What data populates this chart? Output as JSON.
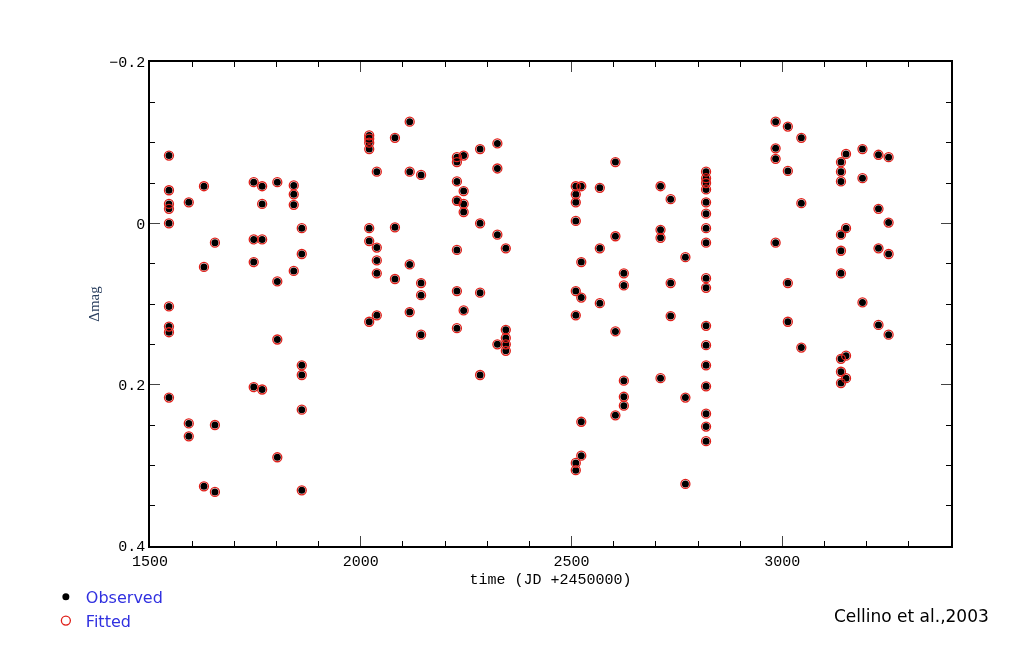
{
  "chart_data": {
    "type": "scatter",
    "xlabel": "time (JD +2450000)",
    "ylabel": "Δmag",
    "xlim": [
      1500,
      3400
    ],
    "xticks": [
      1500,
      2000,
      2500,
      3000
    ],
    "ylim": [
      0.4,
      -0.2
    ],
    "yticks": [
      -0.2,
      0,
      0.2,
      0.4
    ],
    "x": [
      1545,
      1545,
      1545,
      1545,
      1545,
      1545,
      1545,
      1545,
      1545,
      1592,
      1592,
      1592,
      1628,
      1628,
      1628,
      1654,
      1654,
      1654,
      1746,
      1746,
      1746,
      1746,
      1766,
      1766,
      1766,
      1766,
      1802,
      1802,
      1802,
      1802,
      1841,
      1841,
      1841,
      1841,
      1860,
      1860,
      1860,
      1860,
      1860,
      1860,
      2020,
      2020,
      2020,
      2020,
      2020,
      2020,
      2020,
      2038,
      2038,
      2038,
      2038,
      2038,
      2081,
      2081,
      2081,
      2116,
      2116,
      2116,
      2116,
      2143,
      2143,
      2143,
      2143,
      2228,
      2228,
      2228,
      2228,
      2228,
      2228,
      2228,
      2244,
      2244,
      2244,
      2244,
      2244,
      2283,
      2283,
      2283,
      2283,
      2324,
      2324,
      2324,
      2324,
      2344,
      2344,
      2344,
      2344,
      2344,
      2510,
      2510,
      2510,
      2510,
      2510,
      2510,
      2510,
      2510,
      2523,
      2523,
      2523,
      2523,
      2523,
      2567,
      2567,
      2567,
      2604,
      2604,
      2604,
      2604,
      2624,
      2624,
      2624,
      2624,
      2624,
      2711,
      2711,
      2711,
      2711,
      2735,
      2735,
      2735,
      2770,
      2770,
      2770,
      2819,
      2819,
      2819,
      2819,
      2819,
      2819,
      2819,
      2819,
      2819,
      2819,
      2819,
      2819,
      2819,
      2819,
      2819,
      2819,
      2819,
      2984,
      2984,
      2984,
      2984,
      3013,
      3013,
      3013,
      3013,
      3045,
      3045,
      3045,
      3139,
      3139,
      3139,
      3139,
      3139,
      3139,
      3139,
      3139,
      3139,
      3151,
      3151,
      3151,
      3151,
      3190,
      3190,
      3190,
      3228,
      3228,
      3228,
      3228,
      3252,
      3252,
      3252,
      3252
    ],
    "series": [
      {
        "name": "Observed",
        "color": "#000000",
        "values": [
          -0.084,
          -0.041,
          -0.024,
          -0.018,
          0.0,
          0.103,
          0.128,
          0.135,
          0.216,
          -0.026,
          0.248,
          0.264,
          -0.046,
          0.054,
          0.326,
          0.024,
          0.25,
          0.333,
          -0.051,
          0.02,
          0.048,
          0.203,
          -0.046,
          -0.024,
          0.02,
          0.206,
          -0.051,
          0.072,
          0.144,
          0.29,
          -0.047,
          -0.036,
          -0.023,
          0.059,
          0.006,
          0.038,
          0.176,
          0.188,
          0.231,
          0.331,
          -0.109,
          -0.105,
          -0.1,
          -0.092,
          0.006,
          0.022,
          0.122,
          -0.064,
          0.03,
          0.046,
          0.062,
          0.114,
          -0.106,
          0.005,
          0.069,
          -0.126,
          -0.064,
          0.051,
          0.11,
          -0.06,
          0.074,
          0.089,
          0.138,
          -0.082,
          -0.076,
          -0.052,
          -0.028,
          0.033,
          0.084,
          0.13,
          -0.084,
          -0.04,
          -0.024,
          -0.014,
          0.108,
          -0.092,
          0.0,
          0.086,
          0.188,
          -0.099,
          -0.068,
          0.014,
          0.15,
          0.031,
          0.132,
          0.142,
          0.15,
          0.158,
          -0.046,
          -0.036,
          -0.026,
          -0.003,
          0.084,
          0.114,
          0.297,
          0.306,
          -0.046,
          0.048,
          0.092,
          0.246,
          0.288,
          -0.044,
          0.031,
          0.099,
          -0.076,
          0.016,
          0.134,
          0.238,
          0.062,
          0.077,
          0.195,
          0.215,
          0.226,
          -0.046,
          0.008,
          0.018,
          0.192,
          -0.03,
          0.074,
          0.115,
          0.042,
          0.216,
          0.323,
          -0.064,
          -0.056,
          -0.05,
          -0.042,
          -0.026,
          -0.012,
          0.006,
          0.024,
          0.068,
          0.08,
          0.127,
          0.151,
          0.176,
          0.202,
          0.236,
          0.252,
          0.27,
          -0.126,
          -0.093,
          -0.08,
          0.024,
          -0.12,
          -0.065,
          0.074,
          0.122,
          -0.106,
          -0.025,
          0.154,
          -0.076,
          -0.064,
          -0.052,
          0.014,
          0.034,
          0.062,
          0.168,
          0.184,
          0.198,
          -0.086,
          0.006,
          0.164,
          0.192,
          -0.092,
          -0.056,
          0.098,
          -0.085,
          -0.018,
          0.031,
          0.126,
          -0.082,
          -0.001,
          0.038,
          0.138
        ]
      },
      {
        "name": "Fitted",
        "color": "#e0201a",
        "values": [
          -0.084,
          -0.041,
          -0.024,
          -0.018,
          0.0,
          0.103,
          0.128,
          0.135,
          0.216,
          -0.026,
          0.248,
          0.264,
          -0.046,
          0.054,
          0.326,
          0.024,
          0.25,
          0.333,
          -0.051,
          0.02,
          0.048,
          0.203,
          -0.046,
          -0.024,
          0.02,
          0.206,
          -0.051,
          0.072,
          0.144,
          0.29,
          -0.047,
          -0.036,
          -0.023,
          0.059,
          0.006,
          0.038,
          0.176,
          0.188,
          0.231,
          0.331,
          -0.109,
          -0.105,
          -0.1,
          -0.092,
          0.006,
          0.022,
          0.122,
          -0.064,
          0.03,
          0.046,
          0.062,
          0.114,
          -0.106,
          0.005,
          0.069,
          -0.126,
          -0.064,
          0.051,
          0.11,
          -0.06,
          0.074,
          0.089,
          0.138,
          -0.082,
          -0.076,
          -0.052,
          -0.028,
          0.033,
          0.084,
          0.13,
          -0.084,
          -0.04,
          -0.024,
          -0.014,
          0.108,
          -0.092,
          0.0,
          0.086,
          0.188,
          -0.099,
          -0.068,
          0.014,
          0.15,
          0.031,
          0.132,
          0.142,
          0.15,
          0.158,
          -0.046,
          -0.036,
          -0.026,
          -0.003,
          0.084,
          0.114,
          0.297,
          0.306,
          -0.046,
          0.048,
          0.092,
          0.246,
          0.288,
          -0.044,
          0.031,
          0.099,
          -0.076,
          0.016,
          0.134,
          0.238,
          0.062,
          0.077,
          0.195,
          0.215,
          0.226,
          -0.046,
          0.008,
          0.018,
          0.192,
          -0.03,
          0.074,
          0.115,
          0.042,
          0.216,
          0.323,
          -0.064,
          -0.056,
          -0.05,
          -0.042,
          -0.026,
          -0.012,
          0.006,
          0.024,
          0.068,
          0.08,
          0.127,
          0.151,
          0.176,
          0.202,
          0.236,
          0.252,
          0.27,
          -0.126,
          -0.093,
          -0.08,
          0.024,
          -0.12,
          -0.065,
          0.074,
          0.122,
          -0.106,
          -0.025,
          0.154,
          -0.076,
          -0.064,
          -0.052,
          0.014,
          0.034,
          0.062,
          0.168,
          0.184,
          0.198,
          -0.086,
          0.006,
          0.164,
          0.192,
          -0.092,
          -0.056,
          0.098,
          -0.085,
          -0.018,
          0.031,
          0.126,
          -0.082,
          -0.001,
          0.038,
          0.138
        ]
      }
    ],
    "marker": "circle",
    "legend": "bottom left",
    "annotations": [
      "Cellino et al.,2003"
    ]
  }
}
